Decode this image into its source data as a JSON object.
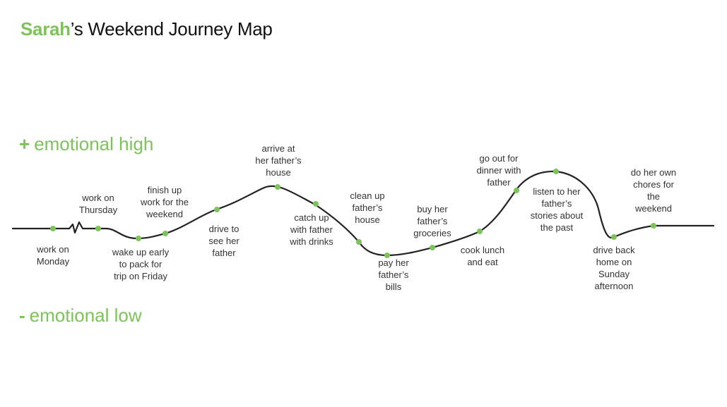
{
  "title": {
    "highlight": "Sarah",
    "rest": "’s Weekend Journey Map"
  },
  "axis": {
    "high": {
      "sign": "+",
      "text": "emotional high"
    },
    "low": {
      "sign": "-",
      "text": "emotional low"
    }
  },
  "colors": {
    "accent": "#7cc45a",
    "line": "#222222"
  },
  "steps": [
    "work on\nMonday",
    "work on\nThursday",
    "wake up early\nto pack for\ntrip on Friday",
    "finish up\nwork for the\nweekend",
    "drive to\nsee her\nfather",
    "arrive at\nher father’s\nhouse",
    "catch up\nwith father\nwith drinks",
    "clean up\nfather’s\nhouse",
    "pay her\nfather’s\nbills",
    "buy her\nfather’s\ngroceries",
    "cook lunch\nand eat",
    "go out for\ndinner with\nfather",
    "listen to her\nfather’s\nstories about\nthe past",
    "drive back\nhome on\nSunday\nafternoon",
    "do her own\nchores for\nthe\nweekend"
  ]
}
